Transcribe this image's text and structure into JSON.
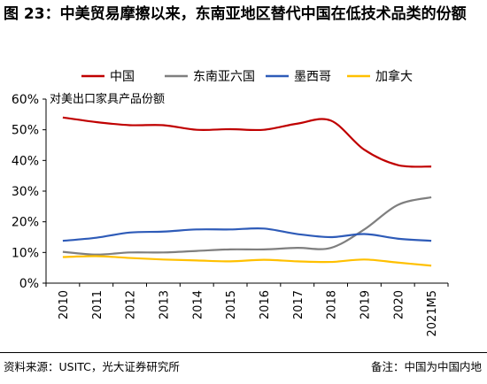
{
  "title": "图 23：中美贸易摩擦以来，东南亚地区替代中国在低技术品类的份额",
  "source": "资料来源：USITC，光大证券研究所",
  "note": "备注：中国为中国内地",
  "chart_data": {
    "type": "line",
    "ylabel": "对美出口家具产品份额",
    "x": [
      "2010",
      "2011",
      "2012",
      "2013",
      "2014",
      "2015",
      "2016",
      "2017",
      "2018",
      "2019",
      "2020",
      "2021M5"
    ],
    "yticks": [
      "0%",
      "10%",
      "20%",
      "30%",
      "40%",
      "50%",
      "60%"
    ],
    "ylim": [
      0,
      60
    ],
    "grid": false,
    "legend_position": "top",
    "series": [
      {
        "name": "中国",
        "color": "#C00000",
        "values": [
          54,
          52.5,
          51.5,
          51.5,
          50,
          50.2,
          50,
          52,
          53,
          43.5,
          38.5,
          38
        ]
      },
      {
        "name": "东南亚六国",
        "color": "#7F7F7F",
        "values": [
          10.2,
          9.3,
          10,
          10,
          10.5,
          11,
          11,
          11.5,
          11.5,
          17.5,
          25.5,
          28
        ]
      },
      {
        "name": "墨西哥",
        "color": "#2E5BB8",
        "values": [
          13.8,
          14.8,
          16.5,
          16.8,
          17.5,
          17.5,
          17.8,
          16,
          15,
          16,
          14.5,
          13.8
        ]
      },
      {
        "name": "加拿大",
        "color": "#FFC000",
        "values": [
          8.5,
          8.8,
          8.2,
          7.7,
          7.4,
          7.1,
          7.6,
          7.1,
          6.9,
          7.7,
          6.7,
          5.7
        ]
      }
    ]
  }
}
